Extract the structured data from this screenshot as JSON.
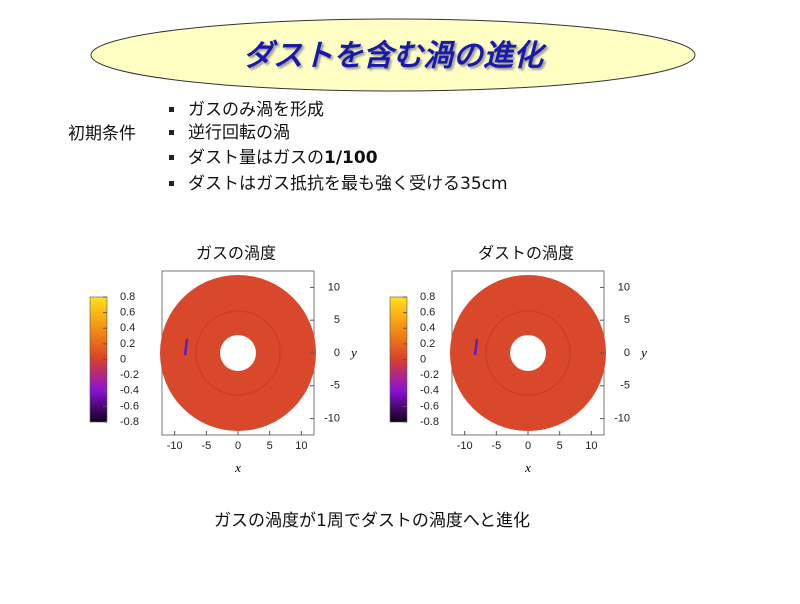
{
  "header": {
    "title": "ダストを含む渦の進化"
  },
  "conditions": {
    "label": "初期条件",
    "items": [
      "ガスのみ渦を形成",
      "逆行回転の渦",
      {
        "text": "ダスト量はガスの",
        "emphasis": "1/100"
      },
      "ダストはガス抵抗を最も強く受ける35cm"
    ]
  },
  "plots": [
    {
      "title": "ガスの渦度",
      "xlabel": "x",
      "ylabel": "y",
      "xlim": [
        -12,
        12
      ],
      "ylim": [
        -12.5,
        12.5
      ],
      "xticks": [
        -10,
        -5,
        0,
        5,
        10
      ],
      "yticks": [
        -10,
        -5,
        0,
        5,
        10
      ],
      "colorbar": {
        "lim": [
          -0.8,
          0.8
        ],
        "ticks": [
          0.8,
          0.6,
          0.4,
          0.2,
          0,
          -0.2,
          -0.4,
          -0.6,
          -0.8
        ]
      }
    },
    {
      "title": "ダストの渦度",
      "xlabel": "x",
      "ylabel": "y",
      "xlim": [
        -12,
        12
      ],
      "ylim": [
        -12.5,
        12.5
      ],
      "xticks": [
        -10,
        -5,
        0,
        5,
        10
      ],
      "yticks": [
        -10,
        -5,
        0,
        5,
        10
      ],
      "colorbar": {
        "lim": [
          -0.8,
          0.8
        ],
        "ticks": [
          0.8,
          0.6,
          0.4,
          0.2,
          0,
          -0.2,
          -0.4,
          -0.6,
          -0.8
        ]
      }
    }
  ],
  "caption": "ガスの渦度が1周でダストの渦度へと進化"
}
